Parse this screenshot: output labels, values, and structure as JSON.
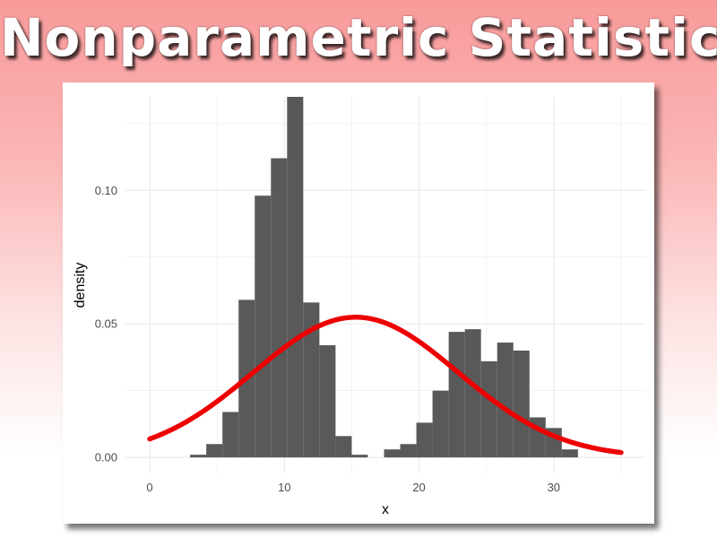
{
  "slide": {
    "title": "Nonparametric Statistics"
  },
  "colors": {
    "background_top": "#f99a9a",
    "bar_fill": "#595959",
    "curve": "#ee0000",
    "grid": "#ebebeb"
  },
  "chart_data": {
    "type": "bar",
    "subtype": "histogram-with-density-curve",
    "xlabel": "x",
    "ylabel": "density",
    "xlim": [
      -1.8,
      36.8
    ],
    "ylim": [
      -0.006,
      0.135
    ],
    "xticks": [
      0,
      10,
      20,
      30
    ],
    "xtick_labels": [
      "0",
      "10",
      "20",
      "30"
    ],
    "yticks": [
      0.0,
      0.05,
      0.1
    ],
    "ytick_labels": [
      "0.00",
      "0.05",
      "0.10"
    ],
    "grid": true,
    "bin_width": 1.2,
    "histogram": [
      {
        "x0": 3.0,
        "x1": 4.2,
        "density": 0.001
      },
      {
        "x0": 4.2,
        "x1": 5.4,
        "density": 0.005
      },
      {
        "x0": 5.4,
        "x1": 6.6,
        "density": 0.017
      },
      {
        "x0": 6.6,
        "x1": 7.8,
        "density": 0.059
      },
      {
        "x0": 7.8,
        "x1": 9.0,
        "density": 0.098
      },
      {
        "x0": 9.0,
        "x1": 10.2,
        "density": 0.112
      },
      {
        "x0": 10.2,
        "x1": 11.4,
        "density": 0.135
      },
      {
        "x0": 11.4,
        "x1": 12.6,
        "density": 0.058
      },
      {
        "x0": 12.6,
        "x1": 13.8,
        "density": 0.042
      },
      {
        "x0": 13.8,
        "x1": 15.0,
        "density": 0.008
      },
      {
        "x0": 15.0,
        "x1": 16.2,
        "density": 0.001
      },
      {
        "x0": 17.4,
        "x1": 18.6,
        "density": 0.003
      },
      {
        "x0": 18.6,
        "x1": 19.8,
        "density": 0.005
      },
      {
        "x0": 19.8,
        "x1": 21.0,
        "density": 0.013
      },
      {
        "x0": 21.0,
        "x1": 22.2,
        "density": 0.025
      },
      {
        "x0": 22.2,
        "x1": 23.4,
        "density": 0.047
      },
      {
        "x0": 23.4,
        "x1": 24.6,
        "density": 0.048
      },
      {
        "x0": 24.6,
        "x1": 25.8,
        "density": 0.036
      },
      {
        "x0": 25.8,
        "x1": 27.0,
        "density": 0.043
      },
      {
        "x0": 27.0,
        "x1": 28.2,
        "density": 0.04
      },
      {
        "x0": 28.2,
        "x1": 29.4,
        "density": 0.015
      },
      {
        "x0": 29.4,
        "x1": 30.6,
        "density": 0.011
      },
      {
        "x0": 30.6,
        "x1": 31.8,
        "density": 0.003
      }
    ],
    "curve": {
      "type": "normal",
      "mean": 15.3,
      "sd": 7.6,
      "x_range": [
        0,
        35
      ]
    }
  }
}
